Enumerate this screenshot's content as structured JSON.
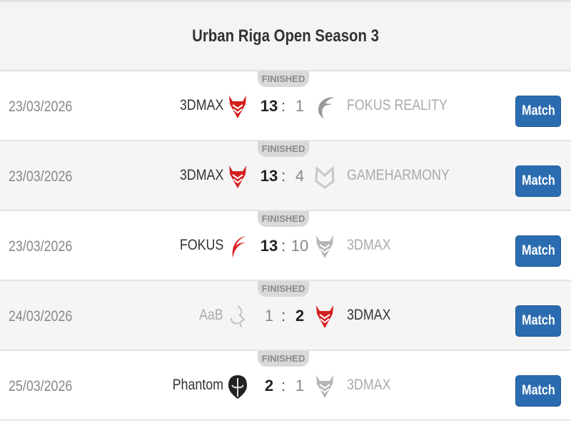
{
  "title": "Urban Riga Open Season 3",
  "colors": {
    "accent": "#2b6cb0",
    "devil_red": "#d41f1f"
  },
  "matches": [
    {
      "status": "FINISHED",
      "date": "23/03/2026",
      "home": "3DMAX",
      "home_logo": "3dmax-logo",
      "home_score": "13",
      "away_score": "1",
      "away": "FOKUS REALITY",
      "away_logo": "fokus-logo",
      "winner": "home",
      "button": "Match"
    },
    {
      "status": "FINISHED",
      "date": "23/03/2026",
      "home": "3DMAX",
      "home_logo": "3dmax-logo",
      "home_score": "13",
      "away_score": "4",
      "away": "GAMEHARMONY",
      "away_logo": "gameharmony-logo",
      "winner": "home",
      "button": "Match"
    },
    {
      "status": "FINISHED",
      "date": "23/03/2026",
      "home": "FOKUS",
      "home_logo": "fokus-logo",
      "home_score": "13",
      "away_score": "10",
      "away": "3DMAX",
      "away_logo": "3dmax-logo",
      "winner": "home",
      "button": "Match"
    },
    {
      "status": "FINISHED",
      "date": "24/03/2026",
      "home": "AaB",
      "home_logo": "aab-logo",
      "home_score": "1",
      "away_score": "2",
      "away": "3DMAX",
      "away_logo": "3dmax-logo",
      "winner": "away",
      "button": "Match"
    },
    {
      "status": "FINISHED",
      "date": "25/03/2026",
      "home": "Phantom",
      "home_logo": "phantom-logo",
      "home_score": "2",
      "away_score": "1",
      "away": "3DMAX",
      "away_logo": "3dmax-logo",
      "winner": "home",
      "button": "Match"
    }
  ]
}
